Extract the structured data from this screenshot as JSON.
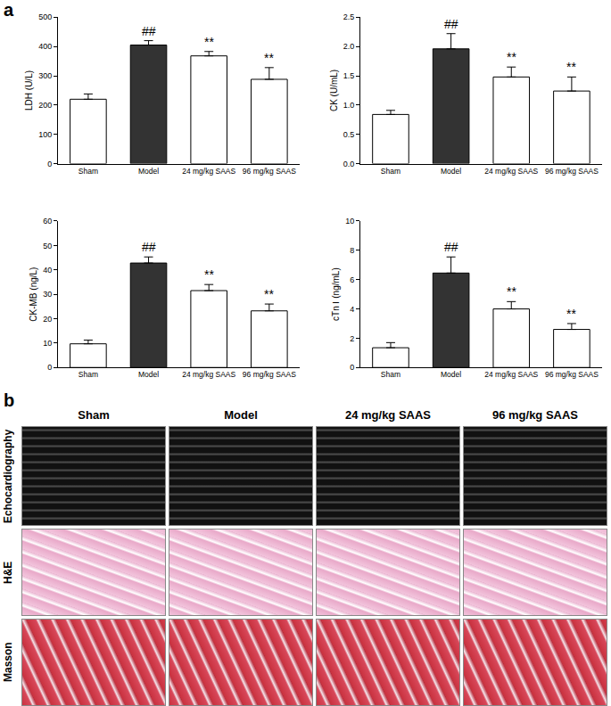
{
  "chart_data": [
    {
      "type": "bar",
      "y_label": "LDH (U/L)",
      "categories": [
        "Sham",
        "Model",
        "24 mg/kg SAAS",
        "96 mg/kg SAAS"
      ],
      "values": [
        220,
        405,
        368,
        288
      ],
      "errors": [
        18,
        15,
        15,
        40
      ],
      "colors": [
        "#ffffff",
        "#333333",
        "#ffffff",
        "#ffffff"
      ],
      "annotations": [
        {
          "category": "Model",
          "text": "##"
        },
        {
          "category": "24 mg/kg SAAS",
          "text": "**"
        },
        {
          "category": "96 mg/kg SAAS",
          "text": "**"
        }
      ],
      "ylim": [
        0,
        500
      ],
      "yticks": [
        0,
        100,
        200,
        300,
        400,
        500
      ],
      "grid": false
    },
    {
      "type": "bar",
      "y_label": "CK (U/mL)",
      "categories": [
        "Sham",
        "Model",
        "24 mg/kg SAAS",
        "96 mg/kg SAAS"
      ],
      "values": [
        0.84,
        1.96,
        1.48,
        1.24
      ],
      "errors": [
        0.07,
        0.26,
        0.17,
        0.24
      ],
      "colors": [
        "#ffffff",
        "#333333",
        "#ffffff",
        "#ffffff"
      ],
      "annotations": [
        {
          "category": "Model",
          "text": "##"
        },
        {
          "category": "24 mg/kg SAAS",
          "text": "**"
        },
        {
          "category": "96 mg/kg SAAS",
          "text": "**"
        }
      ],
      "ylim": [
        0,
        2.5
      ],
      "yticks": [
        {
          "value": 0,
          "label": "0.0"
        },
        0.5,
        {
          "value": 1,
          "label": "1.0"
        },
        1.5,
        {
          "value": 2,
          "label": "2.0"
        },
        2.5
      ],
      "grid": false
    },
    {
      "type": "bar",
      "y_label": "CK-MB (ng/L)",
      "categories": [
        "Sham",
        "Model",
        "24 mg/kg SAAS",
        "96 mg/kg SAAS"
      ],
      "values": [
        9.7,
        42.8,
        31.5,
        23.2
      ],
      "errors": [
        1.5,
        2.5,
        2.5,
        2.8
      ],
      "colors": [
        "#ffffff",
        "#333333",
        "#ffffff",
        "#ffffff"
      ],
      "annotations": [
        {
          "category": "Model",
          "text": "##"
        },
        {
          "category": "24 mg/kg SAAS",
          "text": "**"
        },
        {
          "category": "96 mg/kg SAAS",
          "text": "**"
        }
      ],
      "ylim": [
        0,
        60
      ],
      "yticks": [
        0,
        10,
        20,
        30,
        40,
        50,
        60
      ],
      "grid": false
    },
    {
      "type": "bar",
      "y_label": "cTn Ⅰ (ng/mL)",
      "categories": [
        "Sham",
        "Model",
        "24 mg/kg SAAS",
        "96 mg/kg SAAS"
      ],
      "values": [
        1.35,
        6.45,
        4.0,
        2.6
      ],
      "errors": [
        0.35,
        1.1,
        0.5,
        0.4
      ],
      "colors": [
        "#ffffff",
        "#333333",
        "#ffffff",
        "#ffffff"
      ],
      "annotations": [
        {
          "category": "Model",
          "text": "##"
        },
        {
          "category": "24 mg/kg SAAS",
          "text": "**"
        },
        {
          "category": "96 mg/kg SAAS",
          "text": "**"
        }
      ],
      "ylim": [
        0,
        10
      ],
      "yticks": [
        0,
        2,
        4,
        6,
        8,
        10
      ],
      "grid": false
    }
  ],
  "panel_labels": [
    "a",
    "b"
  ],
  "image_panel": {
    "columns": [
      "Sham",
      "Model",
      "24 mg/kg SAAS",
      "96 mg/kg SAAS"
    ],
    "rows": [
      "Echocardiography",
      "H&E",
      "Masson"
    ]
  }
}
